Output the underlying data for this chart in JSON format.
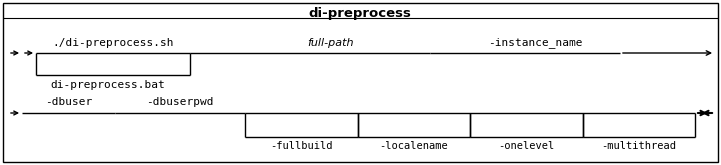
{
  "title": "di-preprocess",
  "background": "#ffffff",
  "border_color": "#000000",
  "text_color": "#000000",
  "fig_width": 7.21,
  "fig_height": 1.65,
  "dpi": 100,
  "sh_text": "./di-preprocess.sh",
  "bat_text": "di-preprocess.bat",
  "fullpath_text": "full-path",
  "instance_text": "-instance_name",
  "dbuser_text": "-dbuser",
  "dbuserpwd_text": "-dbuserpwd",
  "optional_items": [
    "-fullbuild",
    "-localename",
    "-onelevel",
    "-multithread"
  ]
}
